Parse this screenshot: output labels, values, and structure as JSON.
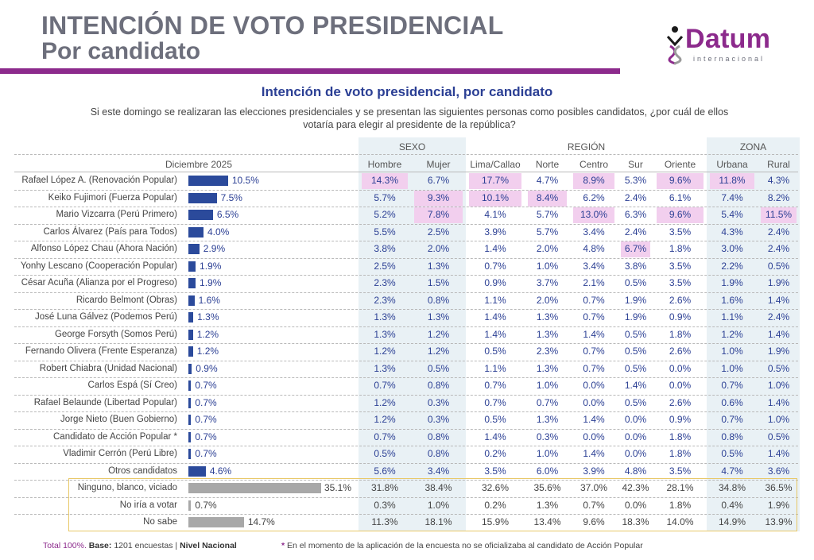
{
  "header": {
    "title_line1": "INTENCIÓN DE VOTO PRESIDENCIAL",
    "title_line2": "Por candidato",
    "logo_word": "Datum",
    "logo_sub": "internacional"
  },
  "chart_data": {
    "type": "table",
    "title": "Intención de voto presidencial, por candidato",
    "question": "Si este domingo se realizaran las elecciones presidenciales y se presentan las siguientes personas como posibles candidatos, ¿por cuál de ellos votaría para elegir al presidente de la república?",
    "period_label": "Diciembre 2025",
    "groups": [
      {
        "name": "SEXO",
        "columns": [
          "Hombre",
          "Mujer"
        ]
      },
      {
        "name": "REGIÓN",
        "columns": [
          "Lima/Callao",
          "Norte",
          "Centro",
          "Sur",
          "Oriente"
        ]
      },
      {
        "name": "ZONA",
        "columns": [
          "Urbana",
          "Rural"
        ]
      }
    ],
    "rows": [
      {
        "label": "Rafael López A. (Renovación Popular)",
        "total": 10.5,
        "total_text": "10.5%",
        "values": [
          "14.3%",
          "6.7%",
          "17.7%",
          "4.7%",
          "8.9%",
          "5.3%",
          "9.6%",
          "11.8%",
          "4.3%"
        ],
        "highlight": [
          0,
          2,
          4,
          6,
          7
        ]
      },
      {
        "label": "Keiko Fujimori (Fuerza Popular)",
        "total": 7.5,
        "total_text": "7.5%",
        "values": [
          "5.7%",
          "9.3%",
          "10.1%",
          "8.4%",
          "6.2%",
          "2.4%",
          "6.1%",
          "7.4%",
          "8.2%"
        ],
        "highlight": [
          1,
          2,
          3
        ]
      },
      {
        "label": "Mario Vizcarra (Perú Primero)",
        "total": 6.5,
        "total_text": "6.5%",
        "values": [
          "5.2%",
          "7.8%",
          "4.1%",
          "5.7%",
          "13.0%",
          "6.3%",
          "9.6%",
          "5.4%",
          "11.5%"
        ],
        "highlight": [
          1,
          4,
          6,
          8
        ]
      },
      {
        "label": "Carlos Álvarez (País para Todos)",
        "total": 4.0,
        "total_text": "4.0%",
        "values": [
          "5.5%",
          "2.5%",
          "3.9%",
          "5.7%",
          "3.4%",
          "2.4%",
          "3.5%",
          "4.3%",
          "2.4%"
        ],
        "highlight": []
      },
      {
        "label": "Alfonso López Chau (Ahora Nación)",
        "total": 2.9,
        "total_text": "2.9%",
        "values": [
          "3.8%",
          "2.0%",
          "1.4%",
          "2.0%",
          "4.8%",
          "6.7%",
          "1.8%",
          "3.0%",
          "2.4%"
        ],
        "highlight": [
          5
        ]
      },
      {
        "label": "Yonhy Lescano (Cooperación Popular)",
        "total": 1.9,
        "total_text": "1.9%",
        "values": [
          "2.5%",
          "1.3%",
          "0.7%",
          "1.0%",
          "3.4%",
          "3.8%",
          "3.5%",
          "2.2%",
          "0.5%"
        ],
        "highlight": []
      },
      {
        "label": "César Acuña (Alianza por el Progreso)",
        "total": 1.9,
        "total_text": "1.9%",
        "values": [
          "2.3%",
          "1.5%",
          "0.9%",
          "3.7%",
          "2.1%",
          "0.5%",
          "3.5%",
          "1.9%",
          "1.9%"
        ],
        "highlight": []
      },
      {
        "label": "Ricardo Belmont (Obras)",
        "total": 1.6,
        "total_text": "1.6%",
        "values": [
          "2.3%",
          "0.8%",
          "1.1%",
          "2.0%",
          "0.7%",
          "1.9%",
          "2.6%",
          "1.6%",
          "1.4%"
        ],
        "highlight": []
      },
      {
        "label": "José Luna Gálvez (Podemos Perú)",
        "total": 1.3,
        "total_text": "1.3%",
        "values": [
          "1.3%",
          "1.3%",
          "1.4%",
          "1.3%",
          "0.7%",
          "1.9%",
          "0.9%",
          "1.1%",
          "2.4%"
        ],
        "highlight": []
      },
      {
        "label": "George Forsyth (Somos Perú)",
        "total": 1.2,
        "total_text": "1.2%",
        "values": [
          "1.3%",
          "1.2%",
          "1.4%",
          "1.3%",
          "1.4%",
          "0.5%",
          "1.8%",
          "1.2%",
          "1.4%"
        ],
        "highlight": []
      },
      {
        "label": "Fernando Olivera (Frente Esperanza)",
        "total": 1.2,
        "total_text": "1.2%",
        "values": [
          "1.2%",
          "1.2%",
          "0.5%",
          "2.3%",
          "0.7%",
          "0.5%",
          "2.6%",
          "1.0%",
          "1.9%"
        ],
        "highlight": []
      },
      {
        "label": "Robert Chiabra (Unidad Nacional)",
        "total": 0.9,
        "total_text": "0.9%",
        "values": [
          "1.3%",
          "0.5%",
          "1.1%",
          "1.3%",
          "0.7%",
          "0.5%",
          "0.0%",
          "1.0%",
          "0.5%"
        ],
        "highlight": []
      },
      {
        "label": "Carlos Espá (Sí Creo)",
        "total": 0.7,
        "total_text": "0.7%",
        "values": [
          "0.7%",
          "0.8%",
          "0.7%",
          "1.0%",
          "0.0%",
          "1.4%",
          "0.0%",
          "0.7%",
          "1.0%"
        ],
        "highlight": []
      },
      {
        "label": "Rafael Belaunde (Libertad Popular)",
        "total": 0.7,
        "total_text": "0.7%",
        "values": [
          "1.2%",
          "0.3%",
          "0.7%",
          "0.7%",
          "0.0%",
          "0.5%",
          "2.6%",
          "0.6%",
          "1.4%"
        ],
        "highlight": []
      },
      {
        "label": "Jorge Nieto (Buen Gobierno)",
        "total": 0.7,
        "total_text": "0.7%",
        "values": [
          "1.2%",
          "0.3%",
          "0.5%",
          "1.3%",
          "1.4%",
          "0.0%",
          "0.9%",
          "0.7%",
          "1.0%"
        ],
        "highlight": []
      },
      {
        "label": "Candidato de Acción Popular *",
        "total": 0.7,
        "total_text": "0.7%",
        "values": [
          "0.7%",
          "0.8%",
          "1.4%",
          "0.3%",
          "0.0%",
          "0.0%",
          "1.8%",
          "0.8%",
          "0.5%"
        ],
        "highlight": []
      },
      {
        "label": "Vladimir Cerrón (Perú Libre)",
        "total": 0.7,
        "total_text": "0.7%",
        "values": [
          "0.5%",
          "0.8%",
          "0.2%",
          "1.0%",
          "1.4%",
          "0.0%",
          "1.8%",
          "0.5%",
          "1.4%"
        ],
        "highlight": []
      },
      {
        "label": "Otros candidatos",
        "total": 4.6,
        "total_text": "4.6%",
        "values": [
          "5.6%",
          "3.4%",
          "3.5%",
          "6.0%",
          "3.9%",
          "4.8%",
          "3.5%",
          "4.7%",
          "3.6%"
        ],
        "highlight": []
      },
      {
        "label": "Ninguno, blanco, viciado",
        "total": 35.1,
        "total_text": "35.1%",
        "values": [
          "31.8%",
          "38.4%",
          "32.6%",
          "35.6%",
          "37.0%",
          "42.3%",
          "28.1%",
          "34.8%",
          "36.5%"
        ],
        "highlight": [],
        "grey": true
      },
      {
        "label": "No iría a votar",
        "total": 0.7,
        "total_text": "0.7%",
        "values": [
          "0.3%",
          "1.0%",
          "0.2%",
          "1.3%",
          "0.7%",
          "0.0%",
          "1.8%",
          "0.4%",
          "1.9%"
        ],
        "highlight": [],
        "grey": true
      },
      {
        "label": "No sabe",
        "total": 14.7,
        "total_text": "14.7%",
        "values": [
          "11.3%",
          "18.1%",
          "15.9%",
          "13.4%",
          "9.6%",
          "18.3%",
          "14.0%",
          "14.9%",
          "13.9%"
        ],
        "highlight": [],
        "grey": true
      }
    ],
    "colors": {
      "bar": "#2b4a9b",
      "bar_grey": "#a8a8a8",
      "highlight": "#f2cfee",
      "accent": "#8c2a8c",
      "box": "#e8c867"
    }
  },
  "footer": {
    "total": "Total 100%.",
    "base_label": "Base:",
    "base_value": "1201 encuestas",
    "sep": "|",
    "level": "Nivel Nacional",
    "note_star": "*",
    "note": "En el momento de la aplicación de la encuesta no se oficializaba al candidato de Acción Popular"
  }
}
